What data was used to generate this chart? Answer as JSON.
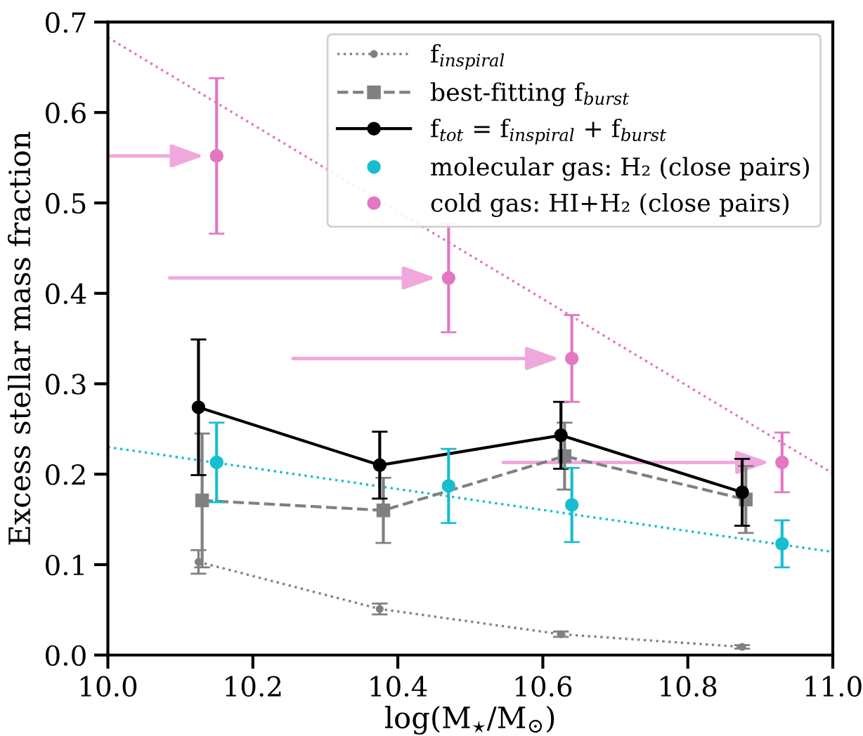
{
  "chart_data": {
    "type": "line",
    "xlabel": "log(M$_{⋆}$/M$_{⊙}$)",
    "ylabel": "Excess stellar mass fraction",
    "xlim": [
      10.0,
      11.0
    ],
    "xticks": [
      {
        "value": 10,
        "label": "10.0"
      },
      10.2,
      10.4,
      10.6,
      10.8,
      {
        "value": 11,
        "label": "11.0"
      }
    ],
    "ylim": [
      0.0,
      0.7
    ],
    "yticks": [
      {
        "value": 0,
        "label": "0.0"
      },
      0.1,
      0.2,
      0.3,
      0.4,
      0.5,
      0.6,
      0.7
    ],
    "grid": false,
    "legend": "top right",
    "series": [
      {
        "name": "f$_{inspiral}$",
        "color": "#808080",
        "marker": "circle",
        "line_style": "dotted",
        "x": [
          10.125,
          10.375,
          10.625,
          10.875
        ],
        "values": [
          0.103,
          0.051,
          0.023,
          0.009
        ],
        "errors": [
          0.013,
          0.006,
          0.003,
          0.002
        ]
      },
      {
        "name": "best-fitting f$_{burst}$",
        "color": "#808080",
        "marker": "square",
        "line_style": "dashed",
        "x": [
          10.13,
          10.38,
          10.63,
          10.88
        ],
        "values": [
          0.171,
          0.16,
          0.22,
          0.172
        ],
        "errors": [
          0.074,
          0.036,
          0.037,
          0.037
        ]
      },
      {
        "name": "f$_{tot}$ = f$_{inspiral}$ + f$_{burst}$",
        "color": "#000000",
        "marker": "circle",
        "line_style": "solid",
        "x": [
          10.125,
          10.375,
          10.625,
          10.875
        ],
        "values": [
          0.274,
          0.21,
          0.243,
          0.18
        ],
        "errors": [
          0.075,
          0.037,
          0.037,
          0.037
        ]
      },
      {
        "name": "molecular gas: H₂ (close pairs)",
        "type": "scatter",
        "color": "#17becf",
        "marker": "circle",
        "x": [
          10.15,
          10.47,
          10.64,
          10.93
        ],
        "values": [
          0.213,
          0.187,
          0.166,
          0.123
        ],
        "errors": [
          0.044,
          0.041,
          0.041,
          0.026
        ]
      },
      {
        "name": "cold gas: HI+H₂ (close pairs)",
        "type": "scatter",
        "color": "#e377c2",
        "marker": "circle",
        "x": [
          10.15,
          10.47,
          10.64,
          10.93
        ],
        "values": [
          0.552,
          0.417,
          0.328,
          0.213
        ],
        "errors": [
          0.086,
          0.06,
          0.048,
          0.033
        ]
      },
      {
        "type": "line",
        "color": "#17becf",
        "marker": "none",
        "line_style": "dotted",
        "x": [
          10.0,
          11.0
        ],
        "values": [
          0.23,
          0.114
        ]
      },
      {
        "type": "line",
        "color": "#e377c2",
        "marker": "none",
        "line_style": "dotted",
        "x": [
          10.0,
          11.0
        ],
        "values": [
          0.683,
          0.201
        ]
      }
    ]
  }
}
